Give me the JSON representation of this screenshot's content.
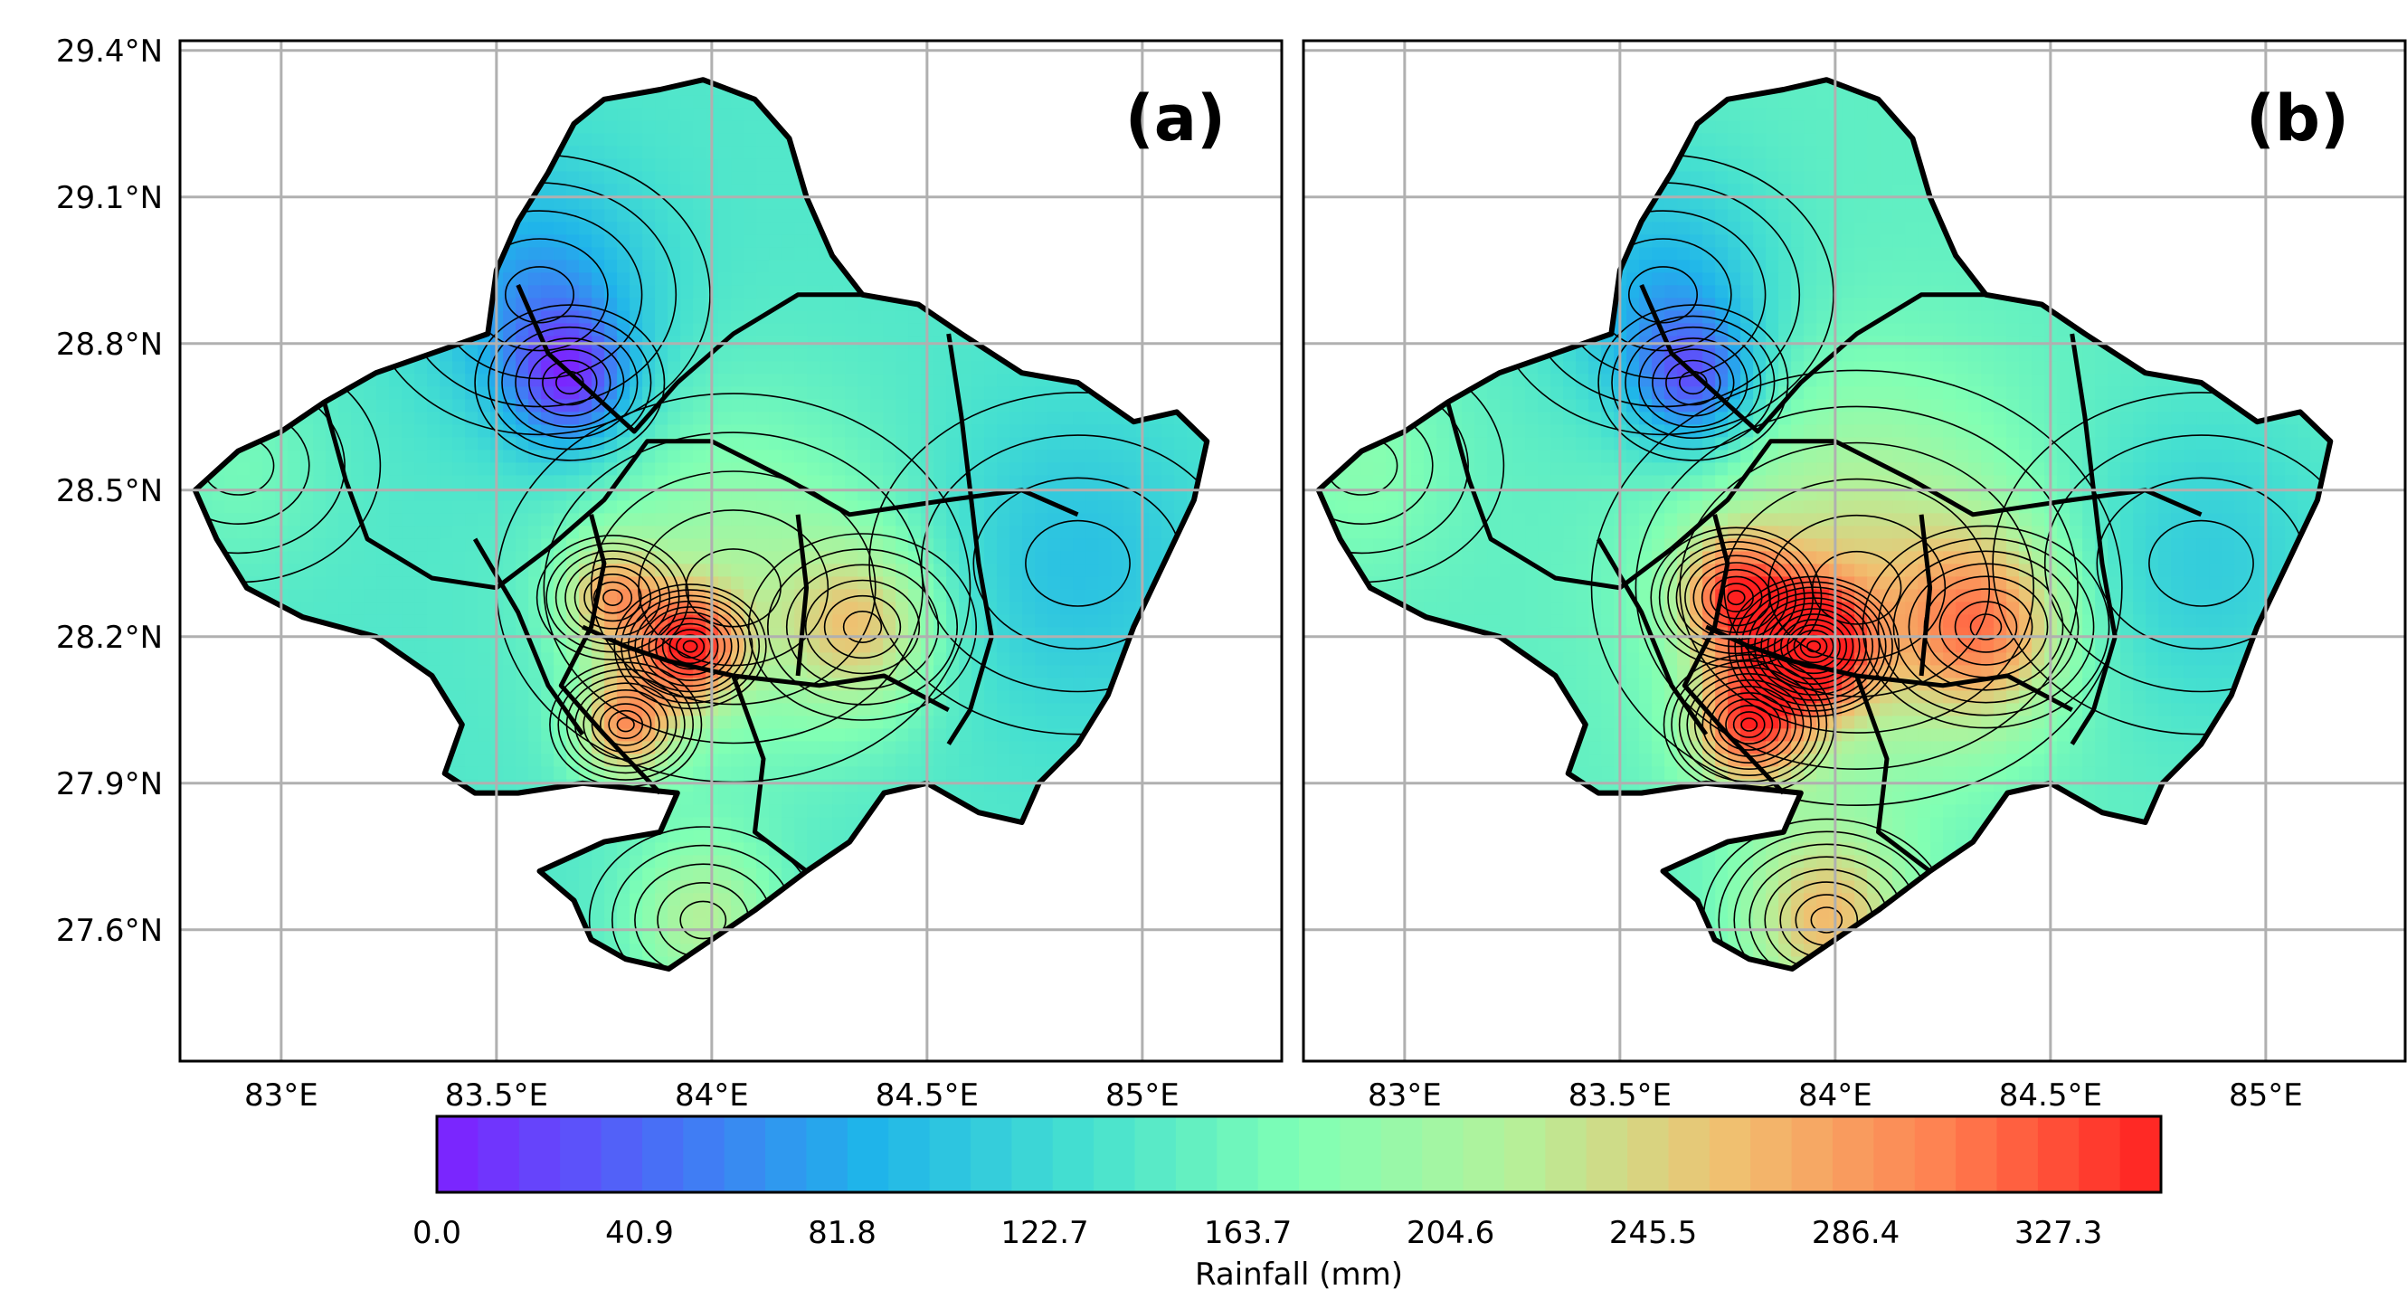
{
  "map": {
    "x_ticks": [
      "83°E",
      "83.5°E",
      "84°E",
      "84.5°E",
      "85°E"
    ],
    "y_ticks": [
      "29.4°N",
      "29.1°N",
      "28.8°N",
      "28.5°N",
      "28.2°N",
      "27.9°N",
      "27.6°N"
    ],
    "panels": [
      {
        "label": "(a)",
        "field": {
          "base": 140,
          "hotspots": [
            {
              "lon": 83.67,
              "lat": 28.72,
              "value": 40,
              "spread": 0.1
            },
            {
              "lon": 83.6,
              "lat": 28.9,
              "value": 70,
              "spread": 0.18
            },
            {
              "lon": 83.95,
              "lat": 28.18,
              "value": 300,
              "spread": 0.08
            },
            {
              "lon": 83.8,
              "lat": 28.02,
              "value": 270,
              "spread": 0.08
            },
            {
              "lon": 83.77,
              "lat": 28.28,
              "value": 250,
              "spread": 0.08
            },
            {
              "lon": 84.35,
              "lat": 28.22,
              "value": 230,
              "spread": 0.12
            },
            {
              "lon": 83.98,
              "lat": 27.62,
              "value": 215,
              "spread": 0.12
            },
            {
              "lon": 84.85,
              "lat": 28.35,
              "value": 100,
              "spread": 0.22
            },
            {
              "lon": 84.05,
              "lat": 28.3,
              "value": 205,
              "spread": 0.25
            },
            {
              "lon": 82.9,
              "lat": 28.55,
              "value": 165,
              "spread": 0.15
            }
          ]
        }
      },
      {
        "label": "(b)",
        "field": {
          "base": 150,
          "hotspots": [
            {
              "lon": 83.67,
              "lat": 28.72,
              "value": 55,
              "spread": 0.1
            },
            {
              "lon": 83.6,
              "lat": 28.9,
              "value": 85,
              "spread": 0.18
            },
            {
              "lon": 83.95,
              "lat": 28.18,
              "value": 335,
              "spread": 0.09
            },
            {
              "lon": 83.8,
              "lat": 28.02,
              "value": 300,
              "spread": 0.09
            },
            {
              "lon": 83.77,
              "lat": 28.28,
              "value": 290,
              "spread": 0.09
            },
            {
              "lon": 84.35,
              "lat": 28.22,
              "value": 265,
              "spread": 0.13
            },
            {
              "lon": 83.98,
              "lat": 27.62,
              "value": 260,
              "spread": 0.13
            },
            {
              "lon": 84.85,
              "lat": 28.35,
              "value": 110,
              "spread": 0.22
            },
            {
              "lon": 84.05,
              "lat": 28.3,
              "value": 240,
              "spread": 0.28
            },
            {
              "lon": 82.9,
              "lat": 28.55,
              "value": 180,
              "spread": 0.15
            }
          ]
        }
      }
    ],
    "colorbar": {
      "min": 0.0,
      "max": 348,
      "tick_values": [
        0.0,
        40.9,
        81.8,
        122.7,
        163.7,
        204.6,
        245.5,
        286.4,
        327.3
      ],
      "tick_labels": [
        "0.0",
        "40.9",
        "81.8",
        "122.7",
        "163.7",
        "204.6",
        "245.5",
        "286.4",
        "327.3"
      ],
      "label": "Rainfall (mm)",
      "colors": [
        "#7f1fff",
        "#4a6cf7",
        "#1fb4ea",
        "#45e0d0",
        "#80ffb4",
        "#b4f19a",
        "#f0c070",
        "#ff8050",
        "#ff2020"
      ]
    }
  }
}
